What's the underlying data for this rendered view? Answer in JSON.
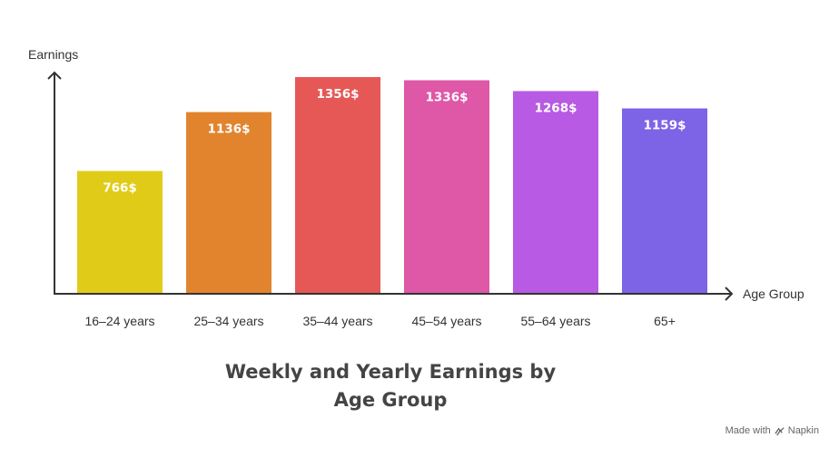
{
  "chart_data": {
    "type": "bar",
    "title": "Weekly and Yearly Earnings by Age Group",
    "xlabel": "Age Group",
    "ylabel": "Earnings",
    "ylim": [
      0,
      1356
    ],
    "grid": false,
    "categories": [
      "16–24 years",
      "25–34 years",
      "35–44 years",
      "45–54 years",
      "55–64 years",
      "65+"
    ],
    "values": [
      766,
      1136,
      1356,
      1336,
      1268,
      1159
    ],
    "value_labels": [
      "766$",
      "1136$",
      "1356$",
      "1336$",
      "1268$",
      "1159$"
    ],
    "colors": [
      "#e0cc18",
      "#e2842e",
      "#e55856",
      "#df57a7",
      "#b85ae3",
      "#7d63e6"
    ]
  },
  "watermark": {
    "prefix": "Made with",
    "brand": "Napkin"
  }
}
